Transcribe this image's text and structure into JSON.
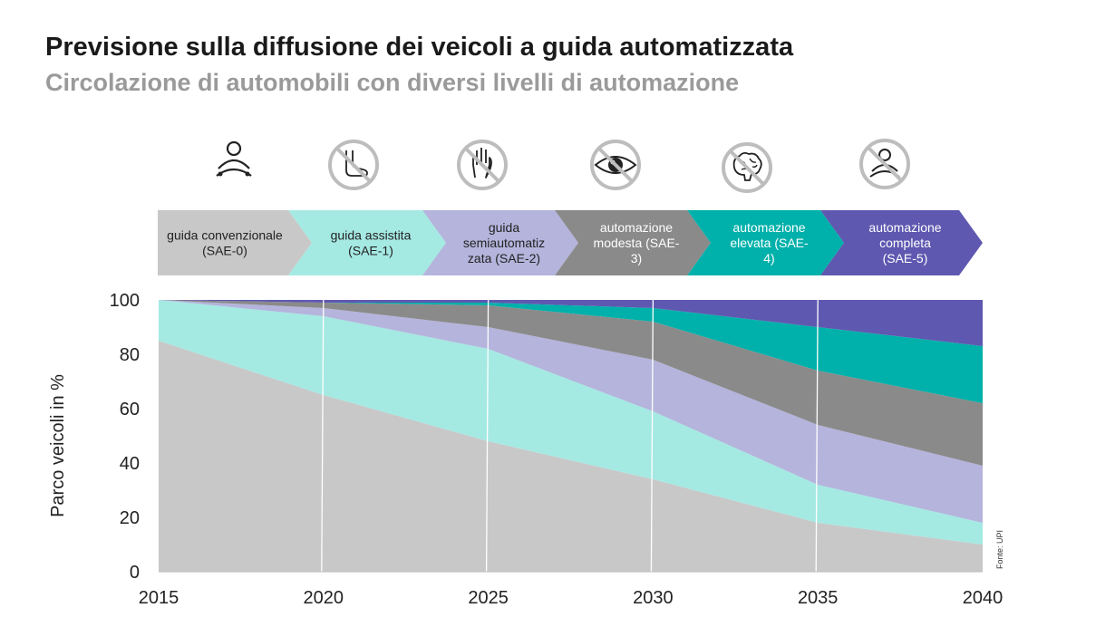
{
  "title": "Previsione sulla diffusione dei veicoli a guida automatizzata",
  "subtitle": "Circolazione di automobili con diversi livelli di automazione",
  "source": "Fonte: UPI",
  "icons": [
    "driver-hands-on-wheel-icon",
    "no-foot-icon",
    "no-hand-icon",
    "no-eye-icon",
    "brain-icon",
    "no-driver-icon"
  ],
  "levels": [
    {
      "lines": [
        "guida convenzionale",
        "(SAE-0)"
      ],
      "color": "#c8c8c8",
      "text_color": "#222222"
    },
    {
      "lines": [
        "guida assistita",
        "(SAE-1)"
      ],
      "color": "#a5e9e3",
      "text_color": "#222222"
    },
    {
      "lines": [
        "guida",
        "semiautomatiz",
        "zata (SAE-2)"
      ],
      "color": "#b4b4dc",
      "text_color": "#222222"
    },
    {
      "lines": [
        "automazione",
        "modesta (SAE-",
        "3)"
      ],
      "color": "#8a8a8a",
      "text_color": "#ffffff"
    },
    {
      "lines": [
        "automazione",
        "elevata (SAE-",
        "4)"
      ],
      "color": "#00b0aa",
      "text_color": "#ffffff"
    },
    {
      "lines": [
        "automazione",
        "completa",
        "(SAE-5)"
      ],
      "color": "#5f58b0",
      "text_color": "#ffffff"
    }
  ],
  "chart_data": {
    "type": "area",
    "stacked": true,
    "x": [
      2015,
      2020,
      2025,
      2030,
      2035,
      2040
    ],
    "xlim": [
      2015,
      2040
    ],
    "ylim": [
      0,
      100
    ],
    "yticks": [
      0,
      20,
      40,
      60,
      80,
      100
    ],
    "ylabel": "Parco veicoli in %",
    "grid": "vertical",
    "series": [
      {
        "name": "guida convenzionale (SAE-0)",
        "color": "#c8c8c8",
        "values": [
          85,
          65,
          48,
          34,
          18,
          10
        ]
      },
      {
        "name": "guida assistita (SAE-1)",
        "color": "#a5e9e3",
        "values": [
          15,
          29,
          34,
          25,
          14,
          8
        ]
      },
      {
        "name": "guida semiautomatizzata (SAE-2)",
        "color": "#b4b4dc",
        "values": [
          0,
          3,
          8,
          19,
          22,
          21
        ]
      },
      {
        "name": "automazione modesta (SAE-3)",
        "color": "#8a8a8a",
        "values": [
          0,
          2,
          8,
          14,
          20,
          23
        ]
      },
      {
        "name": "automazione elevata (SAE-4)",
        "color": "#00b0aa",
        "values": [
          0,
          0,
          1,
          5,
          16,
          21
        ]
      },
      {
        "name": "automazione completa (SAE-5)",
        "color": "#5f58b0",
        "values": [
          0,
          1,
          1,
          3,
          10,
          17
        ]
      }
    ]
  }
}
